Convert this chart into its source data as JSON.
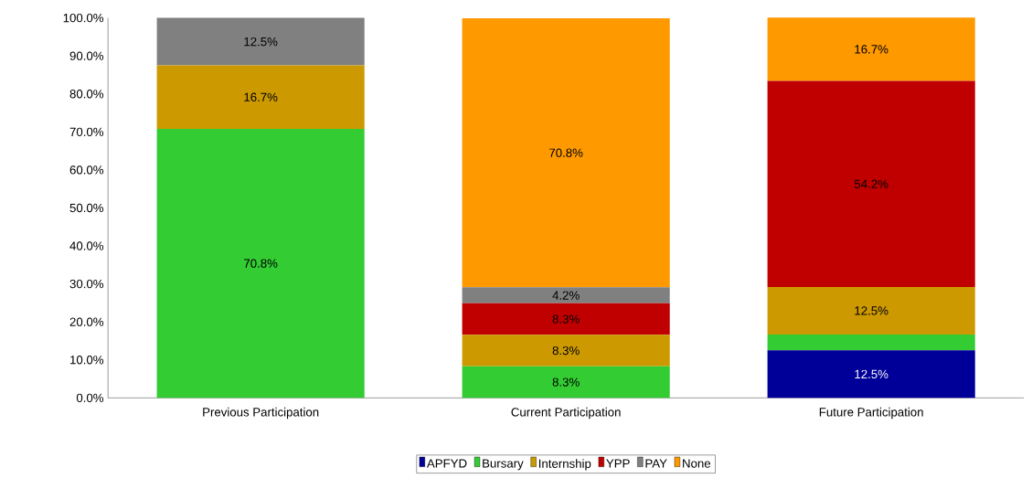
{
  "chart_data": {
    "type": "bar",
    "stacked": true,
    "categories": [
      "Previous Participation",
      "Current Participation",
      "Future Participation"
    ],
    "series": [
      {
        "name": "APFYD",
        "color": "#000099",
        "values": [
          0,
          0,
          12.5
        ],
        "value_labels": [
          null,
          null,
          "12.5%"
        ]
      },
      {
        "name": "Bursary",
        "color": "#33cc33",
        "values": [
          70.8,
          8.3,
          4.2
        ],
        "value_labels": [
          "70.8%",
          "8.3%",
          null
        ]
      },
      {
        "name": "Internship",
        "color": "#cc9900",
        "values": [
          16.7,
          8.3,
          12.5
        ],
        "value_labels": [
          "16.7%",
          "8.3%",
          "12.5%"
        ]
      },
      {
        "name": "YPP",
        "color": "#c00000",
        "values": [
          0,
          8.3,
          54.2
        ],
        "value_labels": [
          null,
          "8.3%",
          "54.2%"
        ]
      },
      {
        "name": "PAY",
        "color": "#808080",
        "values": [
          12.5,
          4.2,
          0
        ],
        "value_labels": [
          "12.5%",
          "4.2%",
          null
        ]
      },
      {
        "name": "None",
        "color": "#ff9900",
        "values": [
          0,
          70.8,
          16.7
        ],
        "value_labels": [
          null,
          "70.8%",
          "16.7%"
        ]
      }
    ],
    "ylim": [
      0,
      100
    ],
    "yticks": [
      {
        "value": 0,
        "label": "0.0%"
      },
      {
        "value": 10,
        "label": "10.0%"
      },
      {
        "value": 20,
        "label": "20.0%"
      },
      {
        "value": 30,
        "label": "30.0%"
      },
      {
        "value": 40,
        "label": "40.0%"
      },
      {
        "value": 50,
        "label": "50.0%"
      },
      {
        "value": 60,
        "label": "60.0%"
      },
      {
        "value": 70,
        "label": "70.0%"
      },
      {
        "value": 80,
        "label": "80.0%"
      },
      {
        "value": 90,
        "label": "90.0%"
      },
      {
        "value": 100,
        "label": "100.0%"
      }
    ],
    "grid": false,
    "legend": "bottom"
  }
}
